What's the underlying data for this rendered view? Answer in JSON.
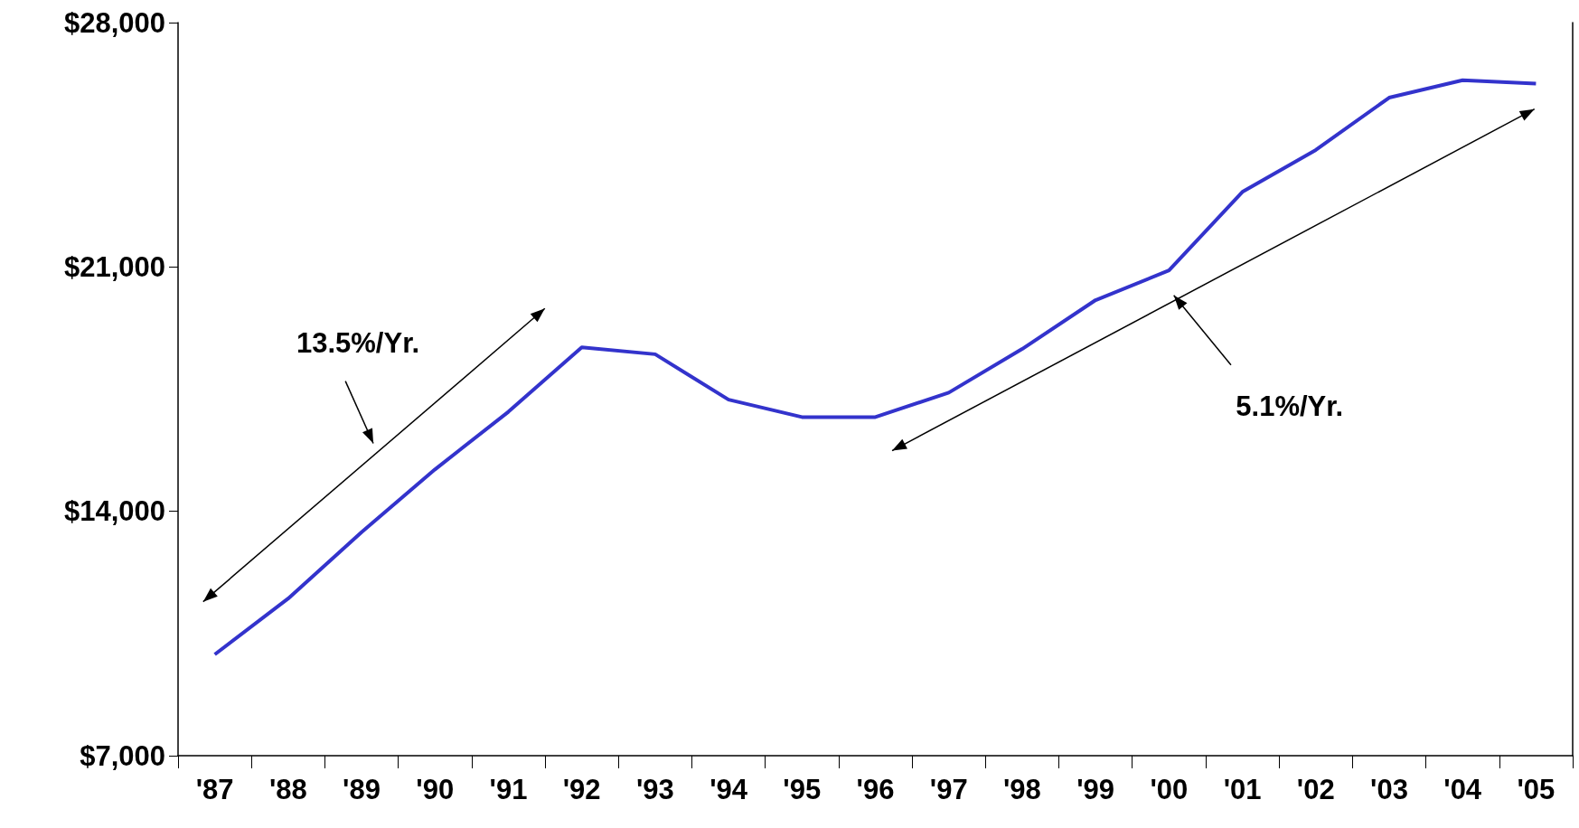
{
  "chart_data": {
    "type": "line",
    "categories": [
      "'87",
      "'88",
      "'89",
      "'90",
      "'91",
      "'92",
      "'93",
      "'94",
      "'95",
      "'96",
      "'97",
      "'98",
      "'99",
      "'00",
      "'01",
      "'02",
      "'03",
      "'04",
      "'05"
    ],
    "series": [
      {
        "color": "#3333cc",
        "values": [
          9900,
          11500,
          13400,
          15200,
          16850,
          18700,
          18500,
          17200,
          16700,
          16700,
          17400,
          18650,
          20050,
          20900,
          23150,
          24350,
          25850,
          26350,
          26250
        ]
      }
    ],
    "ylim": [
      7000,
      28000
    ],
    "yticks": [
      {
        "value": 7000,
        "label": "$7,000"
      },
      {
        "value": 14000,
        "label": "$14,000"
      },
      {
        "value": 21000,
        "label": "$21,000"
      },
      {
        "value": 28000,
        "label": "$28,000"
      }
    ],
    "grid": false,
    "marker": "none",
    "line_style": "solid",
    "annotations": [
      "13.5%/Yr.",
      "5.1%/Yr."
    ]
  }
}
